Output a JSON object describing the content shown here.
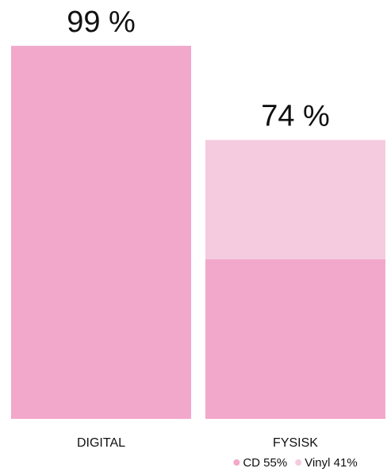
{
  "chart_data": {
    "type": "bar",
    "categories": [
      "DIGITAL",
      "FYSISK"
    ],
    "values": [
      99,
      74
    ],
    "value_labels": [
      "99 %",
      "74 %"
    ],
    "color": "#f2a8cb",
    "ylim": [
      0,
      100
    ],
    "series": [
      {
        "name": "CD",
        "color": "#f2a8cb",
        "values": [
          null,
          55
        ],
        "value_labels": [
          null,
          "55%"
        ]
      },
      {
        "name": "Vinyl",
        "color": "#f5cbdf",
        "values": [
          null,
          41
        ],
        "value_labels": [
          null,
          "41%"
        ]
      }
    ]
  }
}
